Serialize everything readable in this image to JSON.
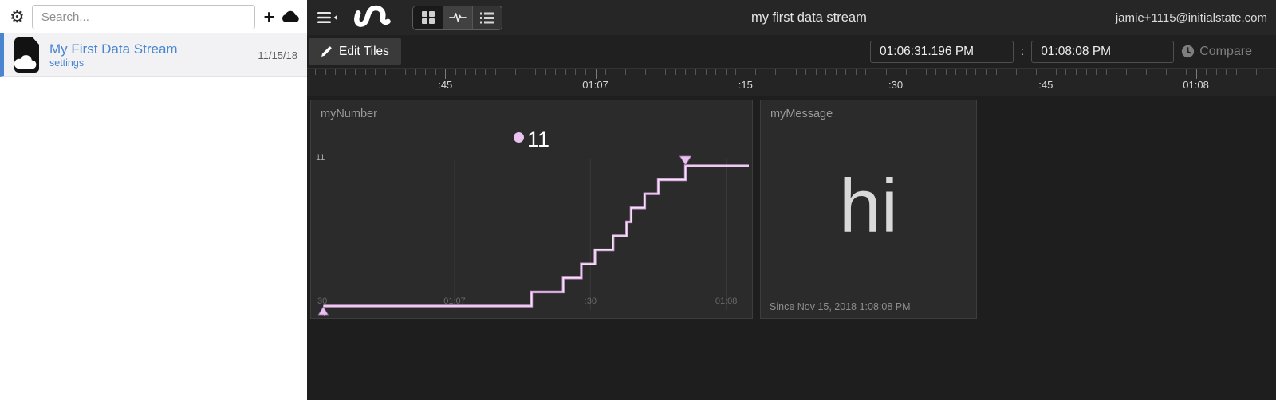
{
  "colors": {
    "accent_blue": "#4a86d0",
    "line_outer": "#c493cc",
    "line_inner": "#f5e2f7",
    "marker_pink": "#e9c2ef",
    "tile_bg": "#2b2b2b",
    "grid_line": "#3a3a3a"
  },
  "icons": {
    "gear_glyph": "⚙",
    "add_glyph": "+",
    "colon_glyph": ":"
  },
  "sidebar": {
    "search_placeholder": "Search...",
    "bucket": {
      "title": "My First Data Stream",
      "settings_label": "settings",
      "date": "11/15/18"
    }
  },
  "topbar": {
    "title": "my first data stream",
    "user_email": "jamie+1115@initialstate.com"
  },
  "toolbar": {
    "edit_tiles_label": "Edit Tiles",
    "time_start": "01:06:31.196 PM",
    "time_end": "01:08:08 PM",
    "compare_label": "Compare"
  },
  "ruler": {
    "start": "01:06:31.196",
    "end": "01:08:08",
    "major_every_s": 15,
    "labels": [
      ":45",
      "01:07",
      ":15",
      ":30",
      ":45",
      "01:08"
    ]
  },
  "chart_data": [
    {
      "type": "step-line",
      "tile_title": "myNumber",
      "current_value": "11",
      "y_axis": {
        "min": 1,
        "max": 11,
        "min_label": "1",
        "max_label": "11"
      },
      "x_axis": {
        "range_start": "01:06:29",
        "range_end": "01:08:05",
        "ticks": [
          {
            "label": "30",
            "t": "01:06:30"
          },
          {
            "label": "01:07",
            "t": "01:07:00"
          },
          {
            "label": ":30",
            "t": "01:07:30"
          },
          {
            "label": "01:08",
            "t": "01:08:00"
          }
        ]
      },
      "points": [
        {
          "t": "01:06:31",
          "v": 1
        },
        {
          "t": "01:07:17",
          "v": 2
        },
        {
          "t": "01:07:24",
          "v": 3
        },
        {
          "t": "01:07:28",
          "v": 4
        },
        {
          "t": "01:07:31",
          "v": 5
        },
        {
          "t": "01:07:35",
          "v": 6
        },
        {
          "t": "01:07:38",
          "v": 7
        },
        {
          "t": "01:07:39",
          "v": 8
        },
        {
          "t": "01:07:42",
          "v": 9
        },
        {
          "t": "01:07:45",
          "v": 10
        },
        {
          "t": "01:07:51",
          "v": 11
        }
      ],
      "legend_position": "top-center",
      "grid": "vertical-only"
    },
    {
      "type": "text",
      "tile_title": "myMessage",
      "value": "hi",
      "since": "Since Nov 15, 2018 1:08:08 PM"
    }
  ]
}
